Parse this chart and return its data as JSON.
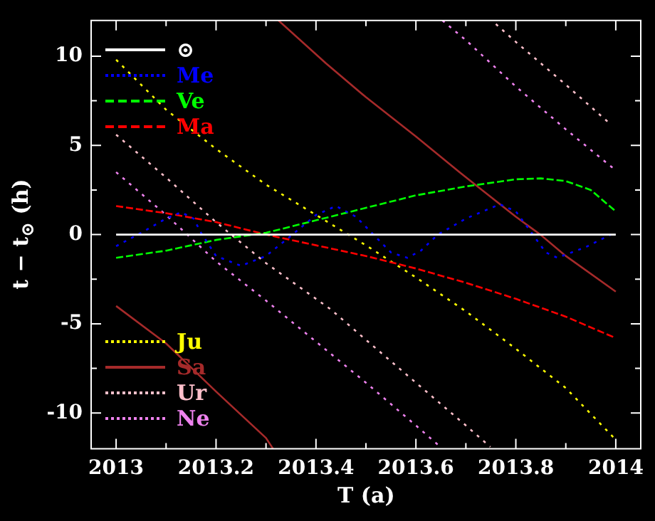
{
  "chart_data": {
    "type": "line",
    "xlabel": "T (a)",
    "ylabel": "t − t$_{⊙}$ (h)",
    "xlim": [
      2012.95,
      2014.05
    ],
    "ylim": [
      -12,
      12
    ],
    "xticks": [
      2013,
      {
        "value": 2013.1,
        "label": null
      },
      2013.2,
      {
        "value": 2013.3,
        "label": null
      },
      2013.4,
      {
        "value": 2013.5,
        "label": null
      },
      2013.6,
      {
        "value": 2013.7,
        "label": null
      },
      2013.8,
      {
        "value": 2013.9,
        "label": null
      },
      2014
    ],
    "yticks": [
      -10,
      {
        "value": -7.5,
        "label": null
      },
      -5,
      {
        "value": -2.5,
        "label": null
      },
      0,
      {
        "value": 2.5,
        "label": null
      },
      5,
      {
        "value": 7.5,
        "label": null
      },
      10
    ],
    "grid": false,
    "legend": "left",
    "marker": "none",
    "series": [
      {
        "name": "⊙",
        "color": "#ffffff",
        "line_style": "solid",
        "x": [
          2013,
          2014
        ],
        "values": [
          0,
          0
        ]
      },
      {
        "name": "Me",
        "color": "#0000ff",
        "line_style": "dotted",
        "x": [
          2013,
          2013.05,
          2013.1,
          2013.13,
          2013.155,
          2013.17,
          2013.2,
          2013.25,
          2013.3,
          2013.353,
          2013.4,
          2013.44,
          2013.48,
          2013.515,
          2013.55,
          2013.583,
          2013.61,
          2013.644,
          2013.7,
          2013.768,
          2013.8,
          2013.834,
          2013.86,
          2013.883,
          2013.94,
          2013.99
        ],
        "values": [
          -0.65,
          0.1,
          0.9,
          1.25,
          0.9,
          0.1,
          -1.2,
          -1.75,
          -1.2,
          0,
          1.1,
          1.6,
          1.0,
          0,
          -1.0,
          -1.3,
          -0.9,
          0,
          0.9,
          1.7,
          1.3,
          0,
          -1.0,
          -1.3,
          -0.7,
          0
        ]
      },
      {
        "name": "Ve",
        "color": "#00ff00",
        "line_style": "dashed",
        "x": [
          2013,
          2013.1,
          2013.2,
          2013.3,
          2013.4,
          2013.5,
          2013.6,
          2013.7,
          2013.8,
          2013.85,
          2013.9,
          2013.95,
          2014
        ],
        "values": [
          -1.3,
          -0.9,
          -0.3,
          0.1,
          0.8,
          1.5,
          2.2,
          2.7,
          3.1,
          3.15,
          3.0,
          2.5,
          1.3
        ]
      },
      {
        "name": "Ma",
        "color": "#ff0000",
        "line_style": "dashed",
        "x": [
          2013,
          2013.1,
          2013.2,
          2013.3,
          2013.4,
          2013.5,
          2013.6,
          2013.7,
          2013.8,
          2013.9,
          2014
        ],
        "values": [
          1.6,
          1.2,
          0.7,
          0.0,
          -0.6,
          -1.2,
          -1.9,
          -2.7,
          -3.6,
          -4.6,
          -5.8
        ]
      },
      {
        "name": "Ju",
        "color": "#ffff00",
        "line_style": "dotted",
        "x": [
          2013,
          2013.1,
          2013.2,
          2013.3,
          2013.4,
          2013.5,
          2013.6,
          2013.7,
          2013.8,
          2013.9,
          2014
        ],
        "values": [
          9.8,
          7.0,
          4.8,
          2.8,
          1.1,
          -0.6,
          -2.4,
          -4.3,
          -6.4,
          -8.6,
          -11.5
        ]
      },
      {
        "name": "Sa",
        "color": "#a52a2a",
        "line_style": "solid",
        "x": [
          2013,
          2013.1,
          2013.2,
          2013.3,
          2013.314,
          2013.32,
          2013.325,
          2013.42,
          2013.5,
          2013.6,
          2013.687,
          2013.8,
          2013.849,
          2013.9,
          2014
        ],
        "values": [
          -4,
          -6.1,
          -8.8,
          -11.4,
          -12,
          null,
          12,
          9.6,
          7.7,
          5.5,
          3.5,
          1.0,
          0,
          -1.2,
          -3.2
        ]
      },
      {
        "name": "Ur",
        "color": "#ffc0cb",
        "line_style": "dotted",
        "x": [
          2013,
          2013.1,
          2013.2,
          2013.3,
          2013.43,
          2013.5,
          2013.6,
          2013.7,
          2013.749,
          2013.755,
          2013.76,
          2013.8,
          2013.9,
          2013.985
        ],
        "values": [
          5.6,
          3.2,
          0.7,
          -1.6,
          -4.2,
          -5.9,
          -8.3,
          -10.7,
          -11.9,
          null,
          11.8,
          10.8,
          8.4,
          6.3
        ]
      },
      {
        "name": "Ne",
        "color": "#ee82ee",
        "line_style": "dotted",
        "x": [
          2013,
          2013.1,
          2013.2,
          2013.3,
          2013.4,
          2013.5,
          2013.6,
          2013.649,
          2013.651,
          2013.653,
          2013.7,
          2013.8,
          2013.9,
          2014
        ],
        "values": [
          3.5,
          1.1,
          -1.5,
          -3.7,
          -6.0,
          -8.3,
          -10.7,
          -11.9,
          null,
          12,
          10.9,
          8.3,
          5.9,
          3.6
        ]
      }
    ]
  }
}
